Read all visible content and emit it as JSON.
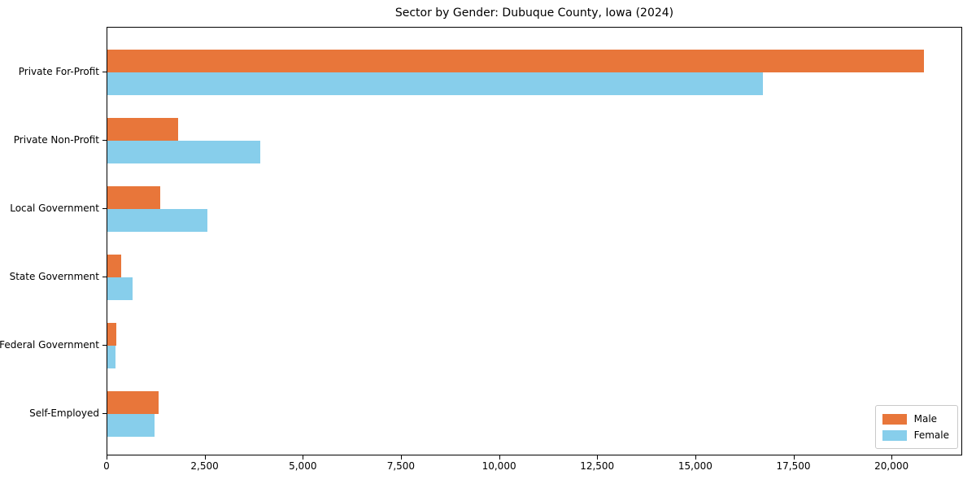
{
  "chart_data": {
    "type": "bar",
    "orientation": "horizontal",
    "title": "Sector by Gender: Dubuque County, Iowa (2024)",
    "categories": [
      "Private For-Profit",
      "Private Non-Profit",
      "Local Government",
      "State Government",
      "Federal Government",
      "Self-Employed"
    ],
    "series": [
      {
        "name": "Male",
        "color": "#e8763a",
        "values": [
          20800,
          1800,
          1350,
          350,
          220,
          1300
        ]
      },
      {
        "name": "Female",
        "color": "#87ceeb",
        "values": [
          16700,
          3900,
          2550,
          650,
          200,
          1200
        ]
      }
    ],
    "xlabel": "",
    "ylabel": "",
    "xlim": [
      0,
      21800
    ],
    "xticks": [
      {
        "value": 0,
        "label": "0"
      },
      {
        "value": 2500,
        "label": "2,500"
      },
      {
        "value": 5000,
        "label": "5,000"
      },
      {
        "value": 7500,
        "label": "7,500"
      },
      {
        "value": 10000,
        "label": "10,000"
      },
      {
        "value": 12500,
        "label": "12,500"
      },
      {
        "value": 15000,
        "label": "15,000"
      },
      {
        "value": 17500,
        "label": "17,500"
      },
      {
        "value": 20000,
        "label": "20,000"
      }
    ],
    "grid": false,
    "legend_position": "lower right",
    "legend_entries": [
      "Male",
      "Female"
    ]
  }
}
